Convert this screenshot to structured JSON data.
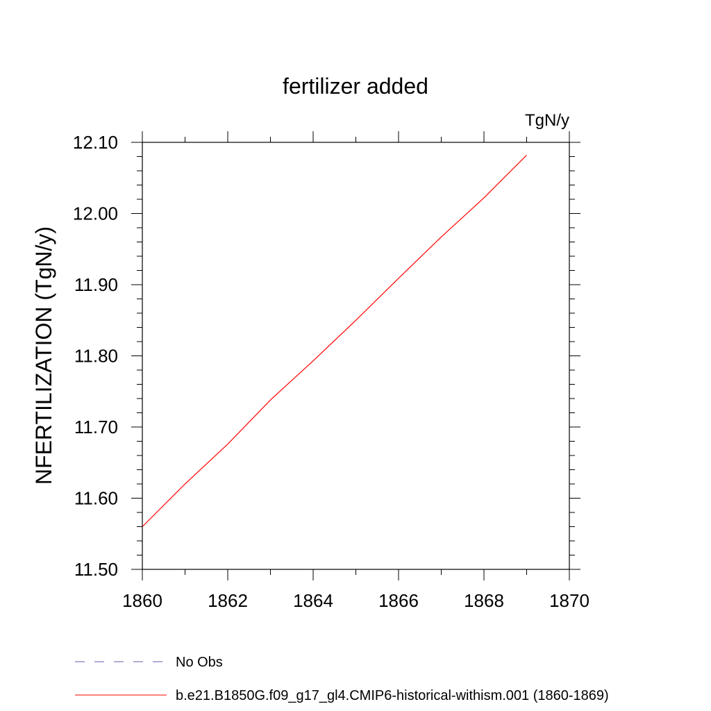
{
  "chart_data": {
    "type": "line",
    "title": "fertilizer added",
    "units_label": "TgN/y",
    "ylabel": "NFERTILIZATION  (TgN/y)",
    "xlabel": "",
    "xlim": [
      1860,
      1870
    ],
    "ylim": [
      11.5,
      12.1
    ],
    "x_ticks": [
      1860,
      1862,
      1864,
      1866,
      1868,
      1870
    ],
    "x_tick_labels": [
      "1860",
      "1862",
      "1864",
      "1866",
      "1868",
      "1870"
    ],
    "y_ticks": [
      11.5,
      11.6,
      11.7,
      11.8,
      11.9,
      12.0,
      12.1
    ],
    "y_tick_labels": [
      "11.50",
      "11.60",
      "11.70",
      "11.80",
      "11.90",
      "12.00",
      "12.10"
    ],
    "grid": false,
    "legend_position": "bottom-left",
    "series": [
      {
        "name": "b.e21.B1850G.f09_g17_gl4.CMIP6-historical-withism.001 (1860-1869)",
        "color": "#ff0000",
        "line_style": "solid",
        "x": [
          1860,
          1861,
          1862,
          1863,
          1864,
          1865,
          1866,
          1867,
          1868,
          1869
        ],
        "values": [
          11.56,
          11.62,
          11.676,
          11.738,
          11.793,
          11.85,
          11.909,
          11.967,
          12.022,
          12.082
        ]
      }
    ],
    "legend": [
      {
        "label": "No Obs",
        "color": "#6655aa",
        "line_style": "dashed"
      },
      {
        "label": "b.e21.B1850G.f09_g17_gl4.CMIP6-historical-withism.001 (1860-1869)",
        "color": "#ff0000",
        "line_style": "solid"
      }
    ]
  }
}
